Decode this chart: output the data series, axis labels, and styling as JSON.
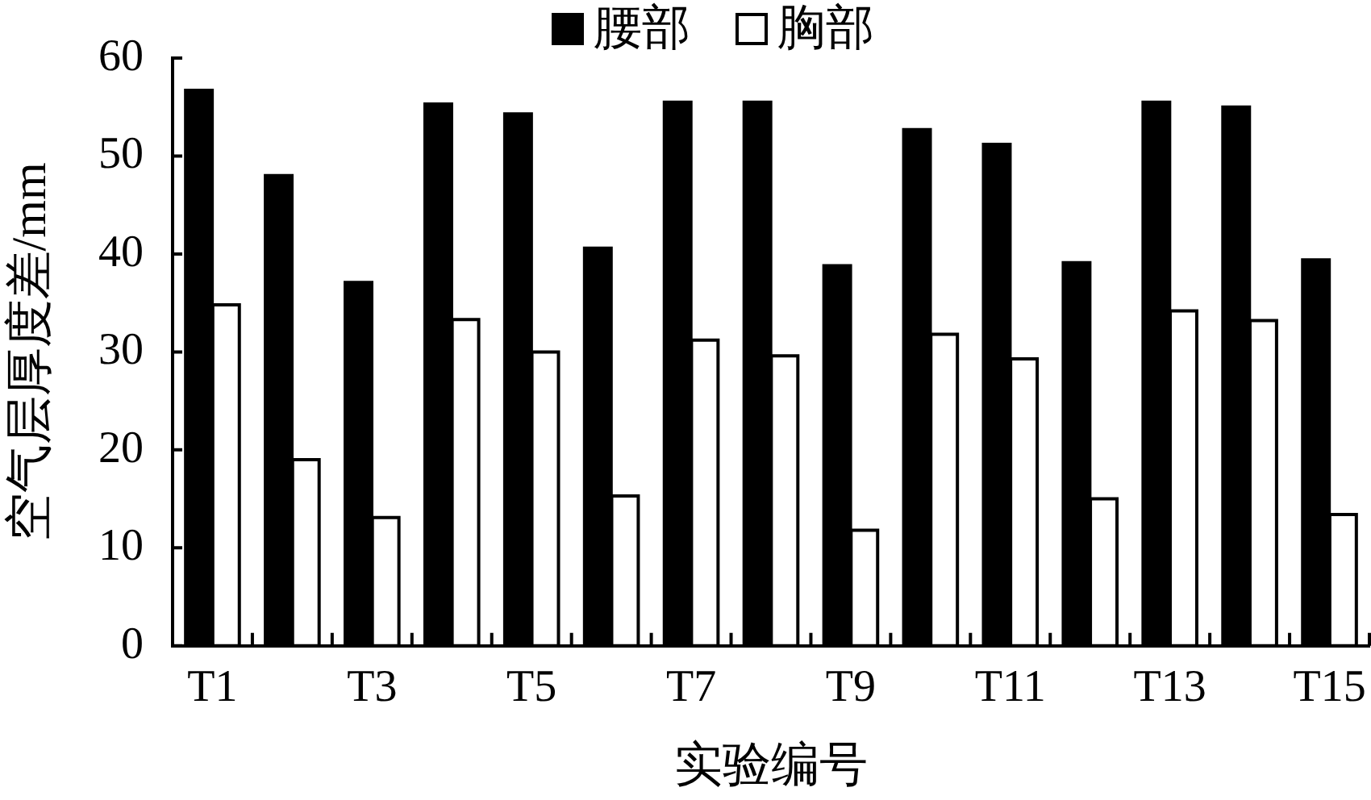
{
  "chart_data": {
    "type": "bar",
    "xlabel": "实验编号",
    "ylabel": "空气层厚度差/mm",
    "categories": [
      "T1",
      null,
      "T3",
      null,
      "T5",
      null,
      "T7",
      null,
      "T9",
      null,
      "T11",
      null,
      "T13",
      null,
      "T15"
    ],
    "series": [
      {
        "name": "腰部",
        "color": "#000000",
        "values": [
          56.7,
          48.0,
          37.1,
          55.3,
          54.3,
          40.6,
          55.5,
          55.5,
          38.8,
          52.7,
          51.2,
          39.1,
          55.5,
          55.0,
          39.4
        ]
      },
      {
        "name": "胸部",
        "color": "#ffffff",
        "values": [
          34.8,
          19.0,
          13.1,
          33.3,
          30.0,
          15.3,
          31.2,
          29.6,
          11.8,
          31.8,
          29.3,
          15.0,
          34.2,
          33.2,
          13.4
        ]
      }
    ],
    "ylim": [
      0,
      60
    ],
    "yticks": [
      0,
      10,
      20,
      30,
      40,
      50,
      60
    ],
    "grid": false,
    "legend": "top"
  }
}
